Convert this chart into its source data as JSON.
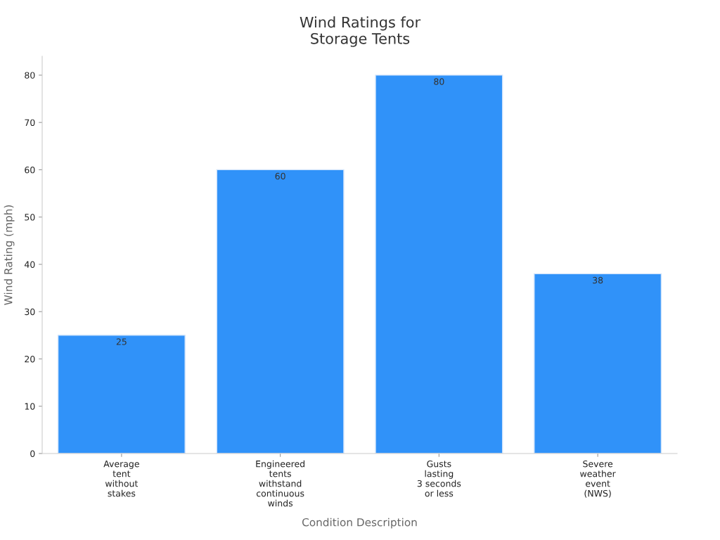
{
  "chart_data": {
    "type": "bar",
    "title": "Wind Ratings for\nStorage Tents",
    "xlabel": "Condition Description",
    "ylabel": "Wind Rating (mph)",
    "categories": [
      "Average\ntent\nwithout\nstakes",
      "Engineered\ntents\nwithstand\ncontinuous\nwinds",
      "Gusts\nlasting\n3 seconds\nor less",
      "Severe\nweather\nevent\n(NWS)"
    ],
    "values": [
      25,
      60,
      80,
      38
    ],
    "color": "#3092f9",
    "ylim": [
      0,
      84
    ],
    "yticks": [
      0,
      10,
      20,
      30,
      40,
      50,
      60,
      70,
      80
    ],
    "grid": false,
    "data_labels": true
  }
}
